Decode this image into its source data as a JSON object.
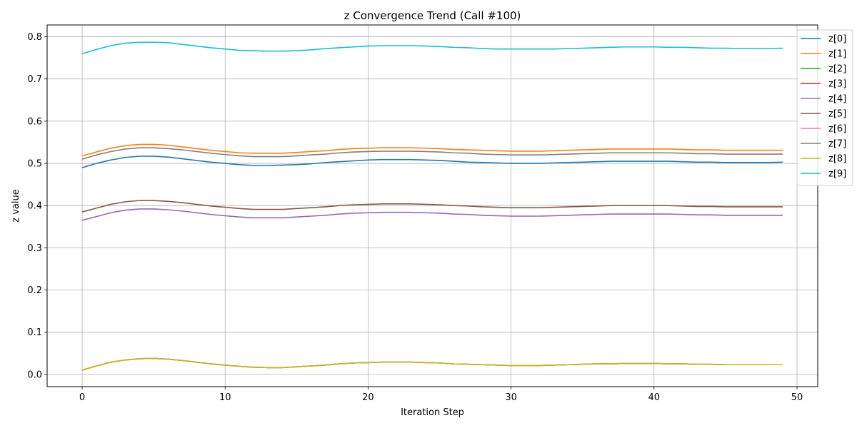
{
  "chart_data": {
    "type": "line",
    "title": "z Convergence Trend (Call #100)",
    "xlabel": "Iteration Step",
    "ylabel": "z value",
    "xlim": [
      -2.45,
      51.45
    ],
    "ylim": [
      -0.029,
      0.828
    ],
    "xticks": [
      0,
      10,
      20,
      30,
      40,
      50
    ],
    "yticks": [
      0.0,
      0.1,
      0.2,
      0.3,
      0.4,
      0.5,
      0.6,
      0.7,
      0.8
    ],
    "grid": true,
    "legend_position": "top-right",
    "x": [
      0,
      1,
      2,
      3,
      4,
      5,
      6,
      7,
      8,
      9,
      10,
      11,
      12,
      13,
      14,
      15,
      16,
      17,
      18,
      19,
      20,
      21,
      22,
      23,
      24,
      25,
      26,
      27,
      28,
      29,
      30,
      31,
      32,
      33,
      34,
      35,
      36,
      37,
      38,
      39,
      40,
      41,
      42,
      43,
      44,
      45,
      46,
      47,
      48,
      49
    ],
    "series": [
      {
        "name": "z[0]",
        "color": "#1f77b4",
        "values": [
          0.49,
          0.5,
          0.508,
          0.514,
          0.517,
          0.517,
          0.515,
          0.511,
          0.507,
          0.503,
          0.5,
          0.497,
          0.495,
          0.495,
          0.496,
          0.497,
          0.499,
          0.502,
          0.504,
          0.506,
          0.508,
          0.509,
          0.509,
          0.509,
          0.508,
          0.507,
          0.505,
          0.503,
          0.502,
          0.501,
          0.5,
          0.5,
          0.5,
          0.501,
          0.502,
          0.503,
          0.504,
          0.505,
          0.505,
          0.505,
          0.505,
          0.505,
          0.504,
          0.503,
          0.503,
          0.502,
          0.502,
          0.502,
          0.502,
          0.503
        ]
      },
      {
        "name": "z[1]",
        "color": "#ff7f0e",
        "values": [
          0.518,
          0.527,
          0.536,
          0.542,
          0.545,
          0.545,
          0.543,
          0.539,
          0.535,
          0.531,
          0.528,
          0.525,
          0.524,
          0.524,
          0.524,
          0.526,
          0.528,
          0.53,
          0.533,
          0.535,
          0.536,
          0.537,
          0.537,
          0.537,
          0.536,
          0.535,
          0.533,
          0.532,
          0.531,
          0.53,
          0.529,
          0.529,
          0.529,
          0.53,
          0.531,
          0.532,
          0.533,
          0.534,
          0.534,
          0.534,
          0.534,
          0.534,
          0.533,
          0.532,
          0.532,
          0.531,
          0.531,
          0.531,
          0.531,
          0.531
        ]
      },
      {
        "name": "z[2]",
        "color": "#2ca02c",
        "values": [
          0.01,
          0.02,
          0.029,
          0.034,
          0.037,
          0.038,
          0.036,
          0.033,
          0.029,
          0.025,
          0.022,
          0.019,
          0.017,
          0.016,
          0.016,
          0.018,
          0.02,
          0.022,
          0.025,
          0.027,
          0.028,
          0.029,
          0.029,
          0.029,
          0.028,
          0.027,
          0.025,
          0.024,
          0.023,
          0.022,
          0.021,
          0.021,
          0.021,
          0.022,
          0.023,
          0.024,
          0.025,
          0.025,
          0.026,
          0.026,
          0.026,
          0.025,
          0.025,
          0.024,
          0.024,
          0.023,
          0.023,
          0.023,
          0.023,
          0.023
        ]
      },
      {
        "name": "z[3]",
        "color": "#d62728",
        "values": [
          0.01,
          0.02,
          0.029,
          0.034,
          0.037,
          0.038,
          0.036,
          0.033,
          0.029,
          0.025,
          0.022,
          0.019,
          0.017,
          0.016,
          0.016,
          0.018,
          0.02,
          0.022,
          0.025,
          0.027,
          0.028,
          0.029,
          0.029,
          0.029,
          0.028,
          0.027,
          0.025,
          0.024,
          0.023,
          0.022,
          0.021,
          0.021,
          0.021,
          0.022,
          0.023,
          0.024,
          0.025,
          0.025,
          0.026,
          0.026,
          0.026,
          0.025,
          0.025,
          0.024,
          0.024,
          0.023,
          0.023,
          0.023,
          0.023,
          0.023
        ]
      },
      {
        "name": "z[4]",
        "color": "#9467bd",
        "values": [
          0.365,
          0.374,
          0.383,
          0.389,
          0.392,
          0.392,
          0.39,
          0.387,
          0.383,
          0.379,
          0.376,
          0.373,
          0.371,
          0.371,
          0.371,
          0.373,
          0.375,
          0.377,
          0.38,
          0.382,
          0.383,
          0.384,
          0.384,
          0.384,
          0.383,
          0.382,
          0.38,
          0.379,
          0.377,
          0.376,
          0.375,
          0.375,
          0.375,
          0.376,
          0.377,
          0.378,
          0.379,
          0.38,
          0.38,
          0.38,
          0.38,
          0.38,
          0.379,
          0.378,
          0.378,
          0.377,
          0.377,
          0.377,
          0.377,
          0.377
        ]
      },
      {
        "name": "z[5]",
        "color": "#8c564b",
        "values": [
          0.385,
          0.394,
          0.403,
          0.409,
          0.412,
          0.412,
          0.41,
          0.407,
          0.403,
          0.399,
          0.396,
          0.393,
          0.391,
          0.391,
          0.391,
          0.393,
          0.395,
          0.397,
          0.4,
          0.402,
          0.403,
          0.404,
          0.404,
          0.404,
          0.403,
          0.402,
          0.4,
          0.399,
          0.397,
          0.396,
          0.395,
          0.395,
          0.395,
          0.396,
          0.397,
          0.398,
          0.399,
          0.4,
          0.4,
          0.4,
          0.4,
          0.4,
          0.399,
          0.398,
          0.398,
          0.397,
          0.397,
          0.397,
          0.397,
          0.397
        ]
      },
      {
        "name": "z[6]",
        "color": "#e377c2",
        "values": [
          0.01,
          0.02,
          0.029,
          0.034,
          0.037,
          0.038,
          0.036,
          0.033,
          0.029,
          0.025,
          0.022,
          0.019,
          0.017,
          0.016,
          0.016,
          0.018,
          0.02,
          0.022,
          0.025,
          0.027,
          0.028,
          0.029,
          0.029,
          0.029,
          0.028,
          0.027,
          0.025,
          0.024,
          0.023,
          0.022,
          0.021,
          0.021,
          0.021,
          0.022,
          0.023,
          0.024,
          0.025,
          0.025,
          0.026,
          0.026,
          0.026,
          0.025,
          0.025,
          0.024,
          0.024,
          0.023,
          0.023,
          0.023,
          0.023,
          0.023
        ]
      },
      {
        "name": "z[7]",
        "color": "#7f7f7f",
        "values": [
          0.51,
          0.52,
          0.528,
          0.534,
          0.537,
          0.537,
          0.535,
          0.532,
          0.528,
          0.524,
          0.521,
          0.518,
          0.516,
          0.516,
          0.516,
          0.518,
          0.52,
          0.522,
          0.525,
          0.527,
          0.528,
          0.529,
          0.529,
          0.529,
          0.528,
          0.527,
          0.525,
          0.524,
          0.522,
          0.521,
          0.52,
          0.52,
          0.52,
          0.521,
          0.522,
          0.523,
          0.524,
          0.525,
          0.525,
          0.525,
          0.525,
          0.525,
          0.524,
          0.523,
          0.523,
          0.522,
          0.522,
          0.522,
          0.522,
          0.522
        ]
      },
      {
        "name": "z[8]",
        "color": "#bcbd22",
        "values": [
          0.01,
          0.02,
          0.029,
          0.034,
          0.037,
          0.038,
          0.036,
          0.033,
          0.029,
          0.025,
          0.022,
          0.019,
          0.017,
          0.016,
          0.016,
          0.018,
          0.02,
          0.022,
          0.025,
          0.027,
          0.028,
          0.029,
          0.029,
          0.029,
          0.028,
          0.027,
          0.025,
          0.024,
          0.023,
          0.022,
          0.021,
          0.021,
          0.021,
          0.022,
          0.023,
          0.024,
          0.025,
          0.025,
          0.026,
          0.026,
          0.026,
          0.025,
          0.025,
          0.024,
          0.024,
          0.023,
          0.023,
          0.023,
          0.023,
          0.023
        ]
      },
      {
        "name": "z[9]",
        "color": "#17becf",
        "values": [
          0.76,
          0.77,
          0.779,
          0.785,
          0.787,
          0.787,
          0.786,
          0.782,
          0.778,
          0.774,
          0.771,
          0.768,
          0.767,
          0.766,
          0.766,
          0.767,
          0.769,
          0.772,
          0.774,
          0.776,
          0.778,
          0.779,
          0.779,
          0.779,
          0.778,
          0.777,
          0.775,
          0.774,
          0.772,
          0.771,
          0.771,
          0.771,
          0.771,
          0.771,
          0.772,
          0.773,
          0.774,
          0.775,
          0.776,
          0.776,
          0.776,
          0.775,
          0.775,
          0.774,
          0.773,
          0.773,
          0.772,
          0.772,
          0.772,
          0.773
        ]
      }
    ]
  }
}
